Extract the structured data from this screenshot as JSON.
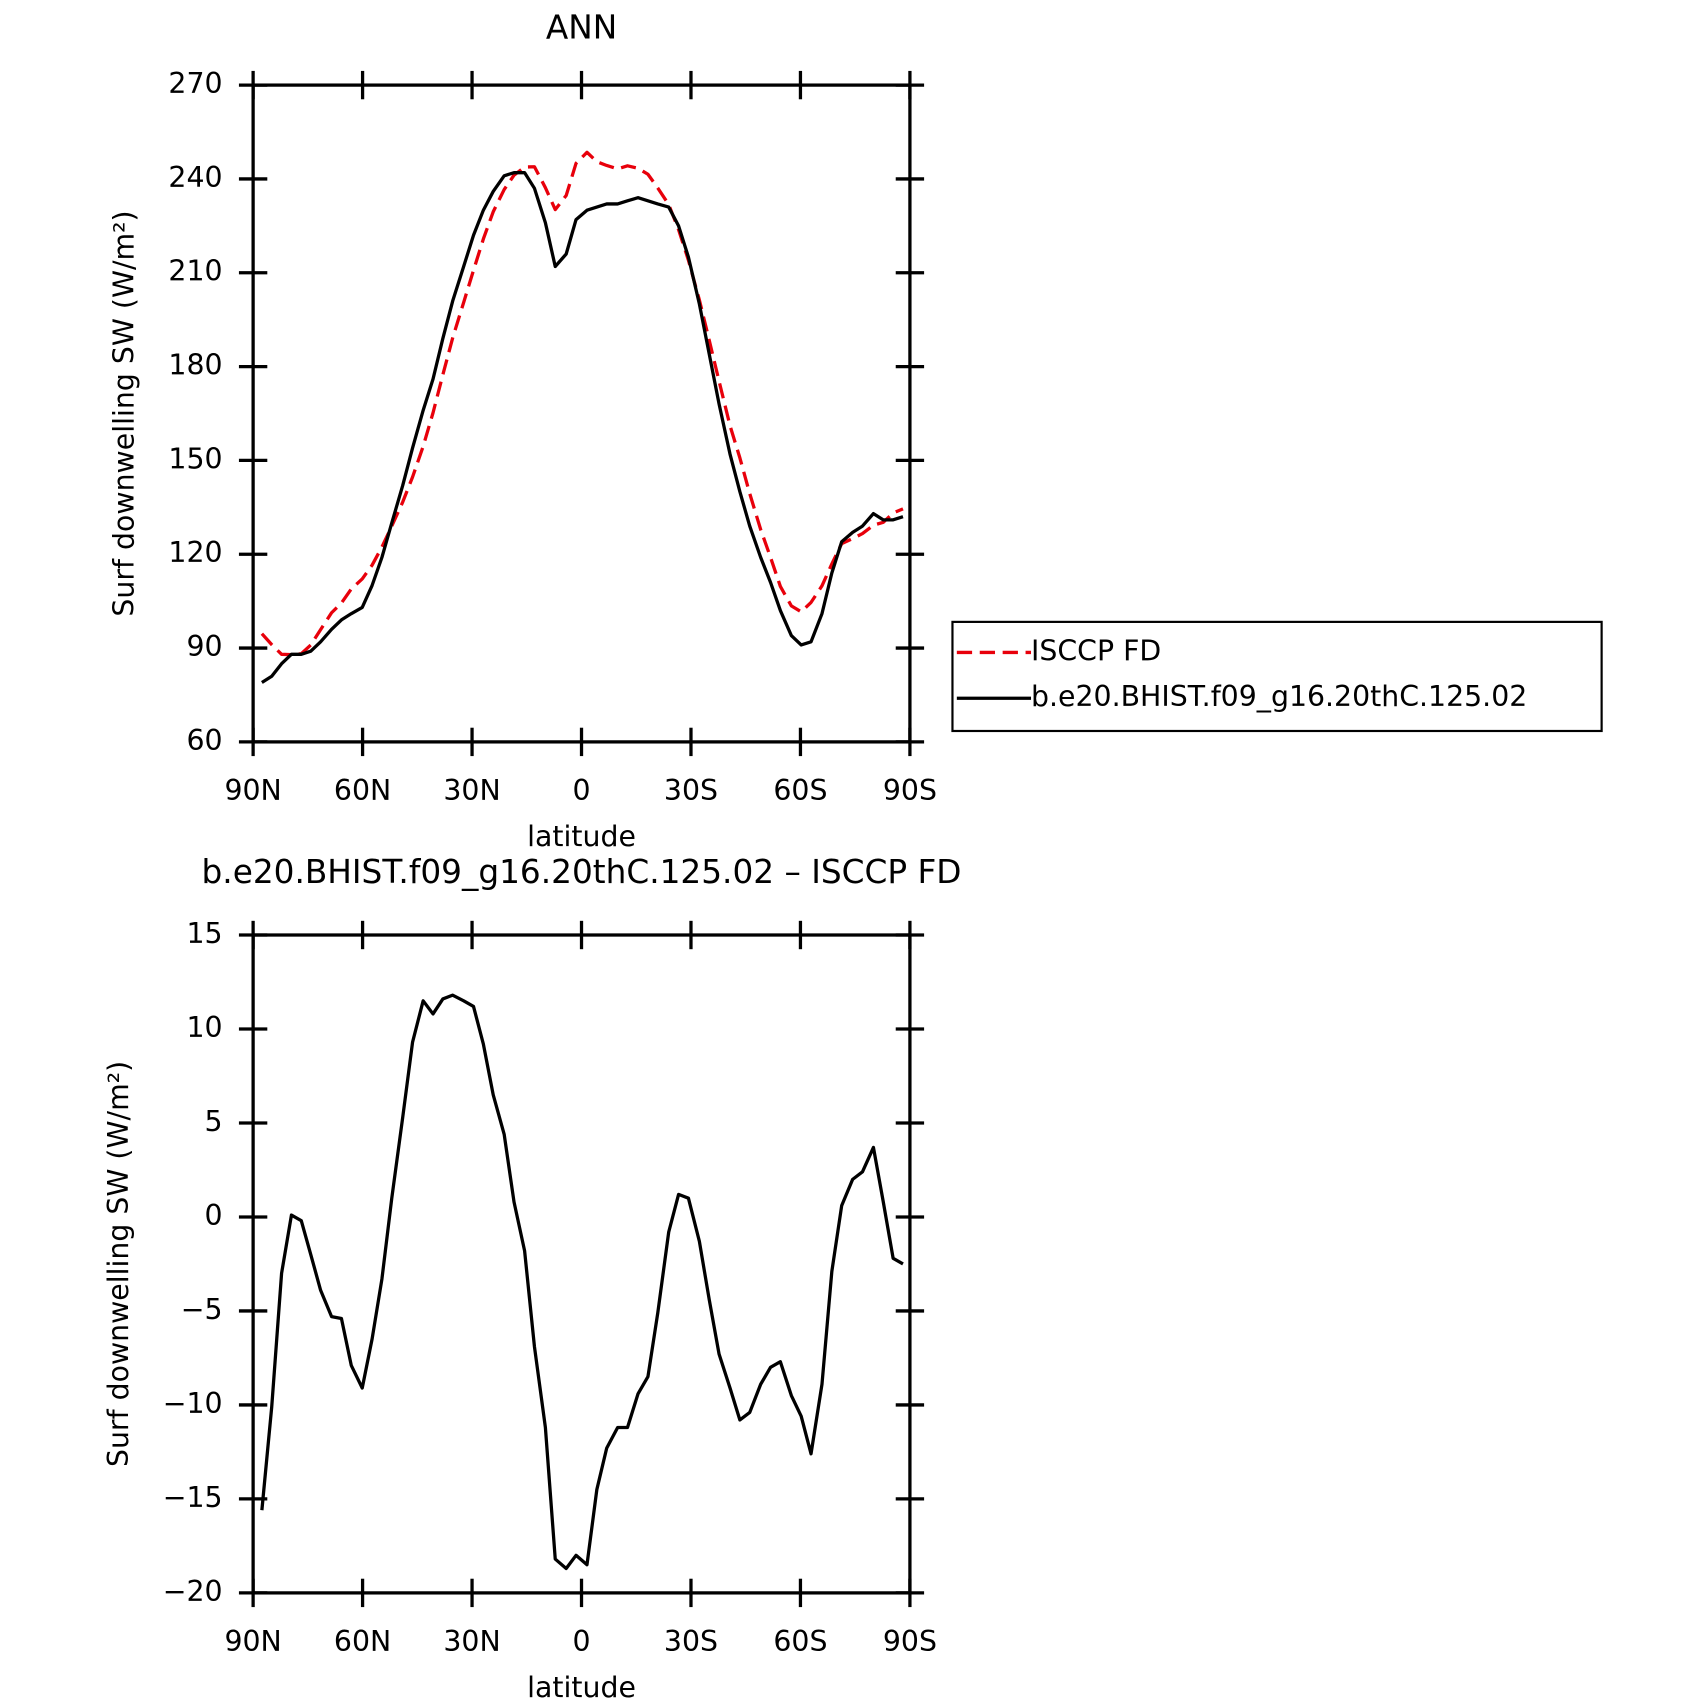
{
  "chart_data": [
    {
      "type": "line",
      "title": "ANN",
      "xlabel": "latitude",
      "ylabel": "Surf downwelling SW (W/m²)",
      "x": [
        87.6,
        84.9,
        82.2,
        79.5,
        76.8,
        74.2,
        71.5,
        68.5,
        65.8,
        63.1,
        60.1,
        57.4,
        54.7,
        52.0,
        49.0,
        46.3,
        43.4,
        40.7,
        38.0,
        35.3,
        32.3,
        29.6,
        26.9,
        24.2,
        21.2,
        18.5,
        15.6,
        12.9,
        9.9,
        7.2,
        4.2,
        1.5,
        -1.5,
        -4.2,
        -6.9,
        -9.9,
        -12.6,
        -15.5,
        -18.2,
        -20.9,
        -23.9,
        -26.6,
        -29.3,
        -32.3,
        -35.0,
        -37.7,
        -40.7,
        -43.4,
        -46.1,
        -49.1,
        -51.8,
        -54.5,
        -57.5,
        -60.2,
        -62.9,
        -65.9,
        -68.6,
        -71.3,
        -74.3,
        -77.0,
        -80.0,
        -82.7,
        -85.4,
        -88.1
      ],
      "series": [
        {
          "name": "ISCCP FD",
          "color": "#e8000b",
          "line_style": "dashed",
          "values": [
            94.6,
            91.1,
            88.0,
            87.9,
            88.2,
            91.0,
            95.9,
            101.3,
            104.4,
            108.9,
            112.1,
            116.5,
            122.3,
            129.0,
            136.7,
            144.7,
            154.5,
            165.2,
            177.4,
            189.2,
            200.5,
            210.8,
            220.8,
            229.5,
            236.6,
            241.2,
            243.8,
            243.9,
            237.2,
            230.2,
            234.7,
            245.0,
            248.5,
            245.5,
            244.3,
            243.2,
            244.2,
            243.4,
            241.5,
            237.1,
            231.8,
            223.8,
            214.0,
            201.3,
            188.4,
            175.3,
            161.1,
            150.8,
            139.4,
            127.9,
            119.0,
            109.7,
            103.5,
            101.6,
            104.6,
            109.9,
            116.9,
            123.4,
            125.0,
            126.6,
            129.3,
            130.2,
            133.2,
            134.5
          ]
        },
        {
          "name": "b.e20.BHIST.f09_g16.20thC.125.02",
          "color": "#000000",
          "line_style": "solid",
          "values": [
            79,
            81,
            85,
            88,
            88,
            89,
            92,
            96,
            99,
            101,
            103,
            110,
            119,
            130,
            142,
            154,
            166,
            176,
            189,
            201,
            212,
            222,
            230,
            236,
            241,
            242,
            242,
            237,
            226,
            212,
            216,
            227,
            230,
            231,
            232,
            232,
            233,
            234,
            233,
            232,
            231,
            225,
            215,
            200,
            184,
            168,
            152,
            140,
            129,
            119,
            111,
            102,
            94,
            91,
            92,
            101,
            114,
            124,
            127,
            129,
            133,
            131,
            131,
            132
          ]
        }
      ],
      "xlim": [
        90,
        -90
      ],
      "xticks": [
        {
          "value": 90,
          "label": "90N"
        },
        {
          "value": 60,
          "label": "60N"
        },
        {
          "value": 30,
          "label": "30N"
        },
        0,
        {
          "value": -30,
          "label": "30S"
        },
        {
          "value": -60,
          "label": "60S"
        },
        {
          "value": -90,
          "label": "90S"
        }
      ],
      "ylim": [
        60,
        270
      ],
      "yticks": [
        60,
        90,
        120,
        150,
        180,
        210,
        240,
        270
      ],
      "legend": "right"
    },
    {
      "type": "line",
      "title": "b.e20.BHIST.f09_g16.20thC.125.02 – ISCCP FD",
      "xlabel": "latitude",
      "ylabel": "Surf downwelling SW (W/m²)",
      "x": [
        87.6,
        84.9,
        82.2,
        79.5,
        76.8,
        74.2,
        71.5,
        68.5,
        65.8,
        63.1,
        60.1,
        57.4,
        54.7,
        52.0,
        49.0,
        46.3,
        43.4,
        40.7,
        38.0,
        35.3,
        32.3,
        29.6,
        26.9,
        24.2,
        21.2,
        18.5,
        15.6,
        12.9,
        9.9,
        7.2,
        4.2,
        1.5,
        -1.5,
        -4.2,
        -6.9,
        -9.9,
        -12.6,
        -15.5,
        -18.2,
        -20.9,
        -23.9,
        -26.6,
        -29.3,
        -32.3,
        -35.0,
        -37.7,
        -40.7,
        -43.4,
        -46.1,
        -49.1,
        -51.8,
        -54.5,
        -57.5,
        -60.2,
        -62.9,
        -65.9,
        -68.6,
        -71.3,
        -74.3,
        -77.0,
        -80.0,
        -82.7,
        -85.4,
        -88.1
      ],
      "series": [
        {
          "color": "#000000",
          "line_style": "solid",
          "values": [
            -15.6,
            -10.1,
            -3.0,
            0.1,
            -0.2,
            -2.0,
            -3.9,
            -5.3,
            -5.4,
            -7.9,
            -9.1,
            -6.5,
            -3.3,
            1.0,
            5.3,
            9.3,
            11.5,
            10.8,
            11.6,
            11.8,
            11.5,
            11.2,
            9.2,
            6.5,
            4.4,
            0.8,
            -1.8,
            -6.9,
            -11.2,
            -18.2,
            -18.7,
            -18.0,
            -18.5,
            -14.5,
            -12.3,
            -11.2,
            -11.2,
            -9.4,
            -8.5,
            -5.1,
            -0.8,
            1.2,
            1.0,
            -1.3,
            -4.4,
            -7.3,
            -9.1,
            -10.8,
            -10.4,
            -8.9,
            -8.0,
            -7.7,
            -9.5,
            -10.6,
            -12.6,
            -8.9,
            -2.9,
            0.6,
            2.0,
            2.4,
            3.7,
            0.8,
            -2.2,
            -2.5
          ]
        }
      ],
      "xlim": [
        90,
        -90
      ],
      "xticks": [
        {
          "value": 90,
          "label": "90N"
        },
        {
          "value": 60,
          "label": "60N"
        },
        {
          "value": 30,
          "label": "30N"
        },
        0,
        {
          "value": -30,
          "label": "30S"
        },
        {
          "value": -60,
          "label": "60S"
        },
        {
          "value": -90,
          "label": "90S"
        }
      ],
      "ylim": [
        -20,
        15
      ],
      "yticks": [
        {
          "value": -20,
          "label": "−20"
        },
        {
          "value": -15,
          "label": "−15"
        },
        {
          "value": -10,
          "label": "−10"
        },
        {
          "value": -5,
          "label": "−5"
        },
        0,
        5,
        10,
        15
      ]
    }
  ]
}
